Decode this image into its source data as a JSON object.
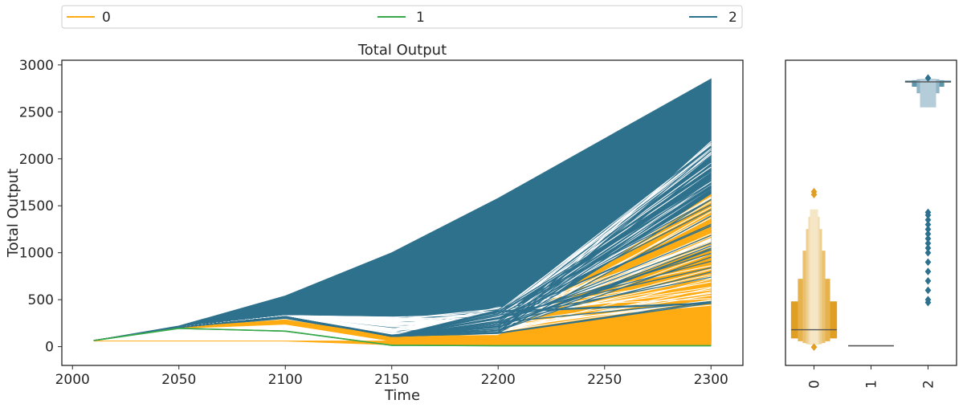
{
  "colors": {
    "0": "#ffab12",
    "1": "#38a84a",
    "2": "#2e718d",
    "frame": "#262626"
  },
  "legend": {
    "entries": [
      {
        "label": "0",
        "color": "#ffab12"
      },
      {
        "label": "1",
        "color": "#38a84a"
      },
      {
        "label": "2",
        "color": "#2e718d"
      }
    ]
  },
  "chart_data": [
    {
      "type": "line",
      "title": "Total Output",
      "xlabel": "Time",
      "ylabel": "Total Output",
      "xlim": [
        1995,
        2315
      ],
      "ylim": [
        -200,
        3050
      ],
      "xticks": [
        2000,
        2050,
        2100,
        2150,
        2200,
        2250,
        2300
      ],
      "yticks": [
        0,
        500,
        1000,
        1500,
        2000,
        2500,
        3000
      ],
      "x": [
        2010,
        2050,
        2100,
        2150,
        2200,
        2300
      ],
      "grid": false,
      "series": [
        {
          "name": "0",
          "envelope_min": [
            65,
            195,
            240,
            60,
            60,
            60
          ],
          "envelope_max": [
            65,
            205,
            285,
            110,
            120,
            1620
          ]
        },
        {
          "name": "1",
          "values": [
            65,
            195,
            165,
            15,
            10,
            10
          ]
        },
        {
          "name": "2",
          "envelope_min": [
            65,
            200,
            300,
            100,
            140,
            450
          ],
          "envelope_max": [
            65,
            220,
            540,
            1000,
            1580,
            2850
          ]
        }
      ]
    },
    {
      "type": "boxen",
      "categories": [
        "0",
        "1",
        "2"
      ],
      "ylim": [
        -200,
        3050
      ],
      "series": [
        {
          "name": "0",
          "median": 180,
          "boxes": [
            [
              90,
              480
            ],
            [
              60,
              720
            ],
            [
              40,
              1020
            ],
            [
              30,
              1250
            ],
            [
              25,
              1380
            ],
            [
              20,
              1460
            ]
          ],
          "outliers": [
            1620,
            1650,
            -5
          ]
        },
        {
          "name": "1",
          "median": 10,
          "boxes": [
            [
              9,
              11
            ]
          ],
          "outliers": []
        },
        {
          "name": "2",
          "median": 2820,
          "boxes": [
            [
              2815,
              2830
            ],
            [
              2770,
              2835
            ],
            [
              2700,
              2845
            ],
            [
              2550,
              2850
            ]
          ],
          "outliers": [
            2860,
            1430,
            1400,
            1350,
            1300,
            1250,
            1200,
            1150,
            1100,
            1050,
            1000,
            900,
            800,
            700,
            600,
            500,
            470
          ]
        }
      ]
    }
  ]
}
